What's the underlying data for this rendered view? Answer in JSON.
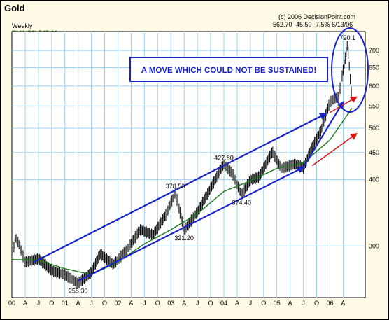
{
  "header": {
    "title": "Gold",
    "subtitle": "Weekly",
    "ema_label": "EMA(50) 545.26",
    "copyright": "(c) 2006 DecisionPoint.com",
    "quote": "562.70  -45.50  -7.5%  6/13/06"
  },
  "annotation": {
    "text": "A MOVE WHICH COULD NOT BE SUSTAINED!"
  },
  "colors": {
    "background": "#fffbe6",
    "plot_area": "#ffffff",
    "grid": "#9fd0f0",
    "price": "#000000",
    "ema": "#1a7a1a",
    "arrow": "#1a23c8",
    "red_arrow": "#e01818",
    "annotation_border": "#1a23c8",
    "annotation_text": "#1a23c8"
  },
  "chart_data": {
    "type": "line",
    "title": "Gold",
    "ylabel": "",
    "xlabel": "",
    "log_scale": true,
    "ylim": [
      240,
      760
    ],
    "grid": true,
    "y_ticks": [
      300,
      400,
      450,
      500,
      550,
      600,
      650,
      700
    ],
    "x_ticks": [
      "00",
      "A",
      "J",
      "O",
      "01",
      "A",
      "J",
      "O",
      "02",
      "A",
      "J",
      "O",
      "03",
      "A",
      "J",
      "O",
      "04",
      "A",
      "J",
      "O",
      "05",
      "A",
      "J",
      "O",
      "06",
      "A"
    ],
    "price_points": [
      [
        "2000-01",
        288
      ],
      [
        "2000-02",
        312
      ],
      [
        "2000-04",
        280
      ],
      [
        "2000-07",
        284
      ],
      [
        "2000-10",
        270
      ],
      [
        "2001-01",
        265
      ],
      [
        "2001-04",
        255.3
      ],
      [
        "2001-07",
        268
      ],
      [
        "2001-09",
        290
      ],
      [
        "2001-12",
        277
      ],
      [
        "2002-03",
        295
      ],
      [
        "2002-06",
        322
      ],
      [
        "2002-09",
        315
      ],
      [
        "2002-12",
        345
      ],
      [
        "2003-02",
        378.5
      ],
      [
        "2003-04",
        321.2
      ],
      [
        "2003-07",
        348
      ],
      [
        "2003-10",
        385
      ],
      [
        "2003-12",
        415
      ],
      [
        "2004-01",
        427.8
      ],
      [
        "2004-03",
        410
      ],
      [
        "2004-05",
        374.4
      ],
      [
        "2004-07",
        400
      ],
      [
        "2004-09",
        405
      ],
      [
        "2004-12",
        452
      ],
      [
        "2005-02",
        420
      ],
      [
        "2005-05",
        428
      ],
      [
        "2005-07",
        422
      ],
      [
        "2005-09",
        460
      ],
      [
        "2005-11",
        495
      ],
      [
        "2006-01",
        560
      ],
      [
        "2006-03",
        575
      ],
      [
        "2006-05",
        720.1
      ],
      [
        "2006-06",
        562.7
      ]
    ],
    "ema": [
      [
        "2000-01",
        283
      ],
      [
        "2000-07",
        282
      ],
      [
        "2001-01",
        272
      ],
      [
        "2001-07",
        265
      ],
      [
        "2002-01",
        280
      ],
      [
        "2002-07",
        303
      ],
      [
        "2003-01",
        322
      ],
      [
        "2003-07",
        345
      ],
      [
        "2004-01",
        380
      ],
      [
        "2004-07",
        398
      ],
      [
        "2005-01",
        420
      ],
      [
        "2005-07",
        430
      ],
      [
        "2006-01",
        475
      ],
      [
        "2006-06",
        545.26
      ]
    ],
    "price_labels": [
      {
        "text": "255.30",
        "date": "2001-04",
        "value": 255.3,
        "pos": "below"
      },
      {
        "text": "378.50",
        "date": "2003-02",
        "value": 378.5,
        "pos": "above"
      },
      {
        "text": "321.20",
        "date": "2003-04",
        "value": 321.2,
        "pos": "below"
      },
      {
        "text": "427.80",
        "date": "2004-01",
        "value": 427.8,
        "pos": "above"
      },
      {
        "text": "374.40",
        "date": "2004-05",
        "value": 374.4,
        "pos": "below"
      },
      {
        "text": "720.1",
        "date": "2006-05",
        "value": 720.1,
        "pos": "above"
      }
    ],
    "channel": {
      "upper": [
        [
          "2000-06",
          280
        ],
        [
          "2005-12",
          532
        ]
      ],
      "lower": [
        [
          "2001-04",
          258
        ],
        [
          "2005-07",
          422
        ]
      ],
      "steep": [
        [
          "2005-07",
          422
        ],
        [
          "2006-04",
          560
        ]
      ]
    },
    "red_arrows": [
      [
        [
          "2006-01",
          535
        ],
        [
          "2006-07",
          572
        ]
      ],
      [
        [
          "2005-09",
          425
        ],
        [
          "2006-07",
          488
        ]
      ]
    ]
  }
}
